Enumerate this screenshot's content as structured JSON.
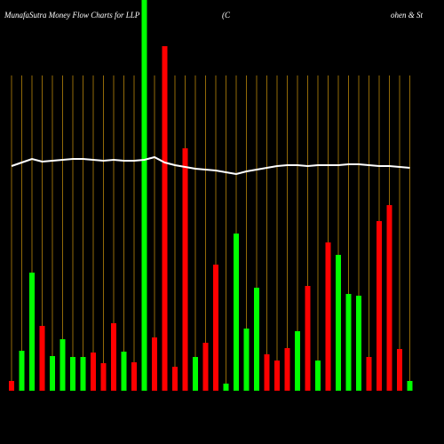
{
  "chart_data": {
    "type": "bar",
    "title": "MunafaSutra  Money Flow  Charts for LLP",
    "title_parts": [
      "(C",
      "ohen & St"
    ],
    "categories": [
      null,
      null,
      null,
      null,
      null,
      null,
      null,
      null,
      null,
      null,
      null,
      null,
      null,
      null,
      null,
      null,
      null,
      null,
      null,
      null,
      null,
      null,
      null,
      null,
      null,
      null,
      null,
      null,
      null,
      null,
      null,
      null,
      null,
      null,
      null,
      null,
      null,
      null,
      null,
      null
    ],
    "values": [
      11,
      45,
      133,
      73,
      39,
      58,
      38,
      38,
      43,
      31,
      76,
      44,
      32,
      440,
      60,
      388,
      27,
      273,
      38,
      54,
      142,
      8,
      177,
      70,
      116,
      41,
      34,
      48,
      67,
      118,
      34,
      167,
      153,
      109,
      107,
      38,
      191,
      209,
      47,
      11
    ],
    "bar_colors": [
      "#ff0000",
      "#00ff00",
      "#00ff00",
      "#ff0000",
      "#00ff00",
      "#00ff00",
      "#00ff00",
      "#00ff00",
      "#ff0000",
      "#ff0000",
      "#ff0000",
      "#00ff00",
      "#ff0000",
      "#00ff00",
      "#ff0000",
      "#ff0000",
      "#ff0000",
      "#ff0000",
      "#00ff00",
      "#ff0000",
      "#ff0000",
      "#00ff00",
      "#00ff00",
      "#00ff00",
      "#00ff00",
      "#ff0000",
      "#ff0000",
      "#ff0000",
      "#00ff00",
      "#ff0000",
      "#00ff00",
      "#ff0000",
      "#00ff00",
      "#00ff00",
      "#00ff00",
      "#ff0000",
      "#ff0000",
      "#ff0000",
      "#ff0000",
      "#00ff00"
    ],
    "line_values": [
      253,
      257,
      261,
      258,
      259,
      260,
      261,
      261,
      260,
      259,
      260,
      259,
      259,
      260,
      263,
      257,
      254,
      252,
      250,
      249,
      248,
      246,
      244,
      247,
      249,
      251,
      253,
      254,
      254,
      253,
      254,
      254,
      254,
      255,
      255,
      254,
      253,
      253,
      252,
      251
    ],
    "line_color": "#ffffff",
    "guide_color": "#b8860b",
    "ylim": [
      0,
      440
    ]
  }
}
